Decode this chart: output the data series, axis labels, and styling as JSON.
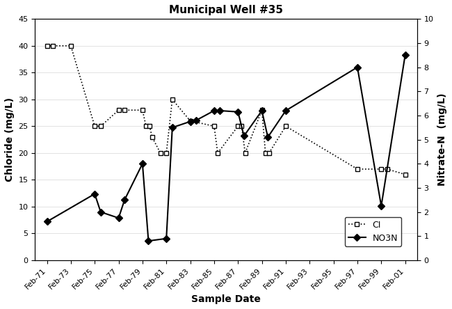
{
  "title": "Municipal Well #35",
  "xlabel": "Sample Date",
  "ylabel_left": "Chloride (mg/L)",
  "ylabel_right": "Nitrate-N  (mg/L)",
  "ylim_left": [
    0,
    45
  ],
  "ylim_right": [
    0,
    10
  ],
  "background_color": "#ffffff",
  "xtick_labels": [
    "Feb-71",
    "Feb-73",
    "Feb-75",
    "Feb-77",
    "Feb-79",
    "Feb-81",
    "Feb-83",
    "Feb-85",
    "Feb-87",
    "Feb-89",
    "Feb-91",
    "Feb-93",
    "Feb-95",
    "Feb-97",
    "Feb-99",
    "Feb-01"
  ],
  "xtick_positions": [
    0,
    2,
    4,
    6,
    8,
    10,
    12,
    14,
    16,
    18,
    20,
    22,
    24,
    26,
    28,
    30
  ],
  "cl_x": [
    0,
    0.5,
    2,
    4,
    4.5,
    6,
    6.5,
    8,
    8.3,
    8.6,
    8.8,
    9.5,
    10,
    10.5,
    12,
    14,
    14.3,
    16,
    16.3,
    16.6,
    18,
    18.3,
    18.6,
    20,
    26,
    28,
    28.5,
    30
  ],
  "cl_y": [
    40,
    40,
    40,
    25,
    25,
    28,
    28,
    28,
    25,
    25,
    23,
    20,
    20,
    30,
    26,
    25,
    20,
    25,
    25,
    20,
    28,
    20,
    20,
    25,
    17,
    17,
    17,
    16
  ],
  "no3n_x": [
    0,
    4,
    4.5,
    6,
    6.5,
    8,
    8.5,
    10,
    10.5,
    12,
    12.5,
    14,
    14.5,
    16,
    16.5,
    18,
    18.5,
    20,
    26,
    28,
    30
  ],
  "no3n_y": [
    1.6,
    2.75,
    2.0,
    1.75,
    2.5,
    4.0,
    0.8,
    0.9,
    5.5,
    5.75,
    5.8,
    6.2,
    6.2,
    6.15,
    5.15,
    6.2,
    5.1,
    6.2,
    8.0,
    2.25,
    8.5
  ]
}
